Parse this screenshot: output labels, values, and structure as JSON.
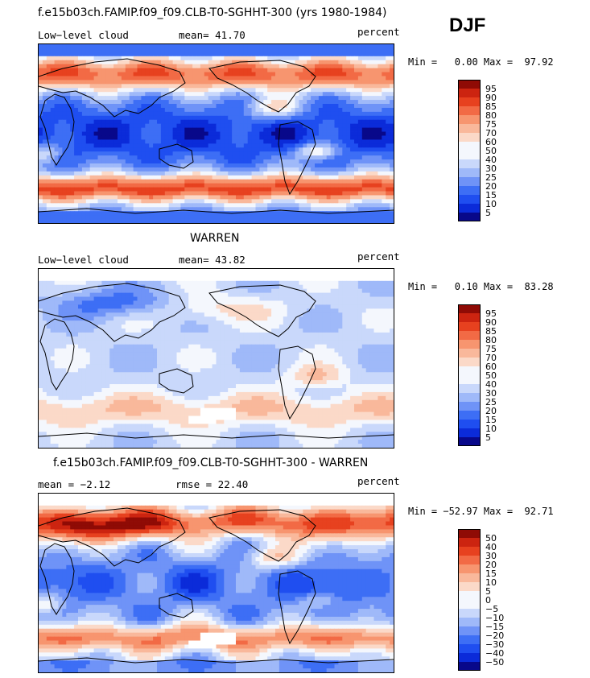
{
  "season": "DJF",
  "colors": {
    "ramp": [
      "#08088a",
      "#0b2bd9",
      "#1f4ef0",
      "#3d6ef5",
      "#6f93f7",
      "#9fb9f9",
      "#c9d8fb",
      "#f4f7fd",
      "#fbd9c8",
      "#f9b89b",
      "#f7956f",
      "#f26a45",
      "#e7411f",
      "#cc2410",
      "#8f0b05"
    ],
    "land": "#000000",
    "missing": "#ffffff"
  },
  "panels": [
    {
      "id": "model",
      "title": "f.e15b03ch.FAMIP.f09_f09.CLB-T0-SGHHT-300 (yrs 1980-1984)",
      "left_label": "Low−level cloud",
      "mid_label": "mean=  41.70",
      "right_label": "percent",
      "minmax": "Min =   0.00 Max =  97.92",
      "colorbar_labels": [
        "95",
        "90",
        "85",
        "80",
        "75",
        "70",
        "60",
        "50",
        "40",
        "30",
        "25",
        "20",
        "15",
        "10",
        "5"
      ]
    },
    {
      "id": "obs",
      "title": "WARREN",
      "left_label": "Low−level cloud",
      "mid_label": "mean=  43.82",
      "right_label": "percent",
      "minmax": "Min =   0.10 Max =  83.28",
      "colorbar_labels": [
        "95",
        "90",
        "85",
        "80",
        "75",
        "70",
        "60",
        "50",
        "40",
        "30",
        "25",
        "20",
        "15",
        "10",
        "5"
      ]
    },
    {
      "id": "diff",
      "title": "f.e15b03ch.FAMIP.f09_f09.CLB-T0-SGHHT-300 - WARREN",
      "left_label": "mean =  −2.12",
      "mid_label": "rmse =  22.40",
      "right_label": "percent",
      "minmax": "Min = −52.97 Max =  92.71",
      "colorbar_labels": [
        "50",
        "40",
        "30",
        "20",
        "15",
        "10",
        "5",
        "0",
        "−5",
        "−10",
        "−15",
        "−20",
        "−30",
        "−40",
        "−50"
      ]
    }
  ]
}
